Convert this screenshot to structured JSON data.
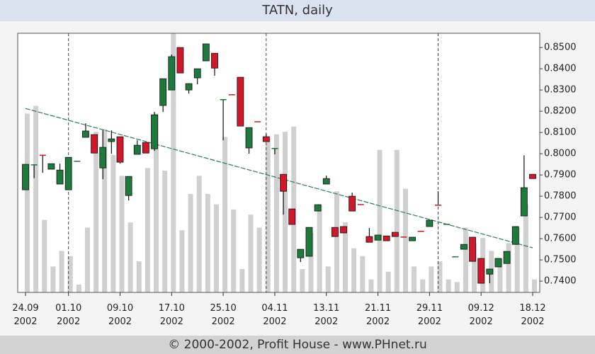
{
  "chart_data": {
    "type": "candlestick",
    "title": "TATN, daily",
    "footer": "© 2000-2002, Profit House - www.PHnet.ru",
    "categories": [
      "24.09\n2002",
      null,
      null,
      null,
      null,
      "01.10\n2002",
      null,
      null,
      null,
      null,
      null,
      "09.10\n2002",
      null,
      null,
      null,
      null,
      null,
      "17.10\n2002",
      null,
      null,
      null,
      null,
      null,
      "25.10\n2002",
      null,
      null,
      null,
      null,
      null,
      "04.11\n2002",
      null,
      null,
      null,
      null,
      null,
      "13.11\n2002",
      null,
      null,
      null,
      null,
      null,
      "21.11\n2002",
      null,
      null,
      null,
      null,
      null,
      "29.11\n2002",
      null,
      null,
      null,
      null,
      null,
      "09.12\n2002",
      null,
      null,
      null,
      null,
      null,
      "18.12\n2002"
    ],
    "open": [
      0.783,
      0.795,
      0.7995,
      0.7927,
      0.7857,
      0.783,
      0.7967,
      0.8077,
      0.809,
      0.7933,
      0.8057,
      0.808,
      0.7803,
      0.7997,
      0.8053,
      0.8023,
      0.8227,
      0.83,
      0.85,
      0.83,
      0.8357,
      0.8437,
      0.8473,
      0.8257,
      0.828,
      0.836,
      0.8027,
      0.8153,
      0.808,
      0.8027,
      0.7903,
      0.774,
      0.751,
      0.7517,
      0.773,
      0.7857,
      0.7653,
      0.7657,
      0.78,
      0.7763,
      0.761,
      0.7593,
      0.7613,
      0.763,
      0.761,
      0.759,
      0.7637,
      0.7657,
      0.776,
      0.767,
      0.7517,
      0.755,
      0.7607,
      0.7507,
      0.7433,
      0.7467,
      0.7483,
      0.7573,
      0.7707,
      0.7903
    ],
    "high": [
      0.795,
      0.795,
      0.7995,
      0.7953,
      0.7953,
      0.7983,
      0.7967,
      0.8143,
      0.809,
      0.811,
      0.811,
      0.808,
      0.7893,
      0.8063,
      0.8053,
      0.8197,
      0.8353,
      0.8467,
      0.85,
      0.833,
      0.84,
      0.8517,
      0.8473,
      0.8257,
      0.828,
      0.836,
      0.8123,
      0.8153,
      0.8093,
      0.8027,
      0.7903,
      0.774,
      0.755,
      0.7653,
      0.776,
      0.7897,
      0.7653,
      0.7657,
      0.7817,
      0.7763,
      0.765,
      0.7617,
      0.7613,
      0.763,
      0.761,
      0.7607,
      0.7637,
      0.7687,
      0.7823,
      0.767,
      0.7517,
      0.7573,
      0.7607,
      0.7507,
      0.7457,
      0.7507,
      0.754,
      0.7657,
      0.7993,
      0.7903
    ],
    "low": [
      0.783,
      0.7885,
      0.791,
      0.7927,
      0.7857,
      0.783,
      0.7967,
      0.8077,
      0.8003,
      0.788,
      0.8,
      0.7953,
      0.778,
      0.7997,
      0.8003,
      0.8013,
      0.8197,
      0.83,
      0.838,
      0.8283,
      0.8327,
      0.8437,
      0.8367,
      0.8063,
      0.828,
      0.813,
      0.8,
      0.8153,
      0.8057,
      0.7997,
      0.7713,
      0.7667,
      0.749,
      0.7517,
      0.773,
      0.7857,
      0.761,
      0.7627,
      0.773,
      0.7763,
      0.7583,
      0.7593,
      0.759,
      0.761,
      0.761,
      0.759,
      0.7637,
      0.7657,
      0.776,
      0.767,
      0.7517,
      0.755,
      0.7493,
      0.739,
      0.739,
      0.7467,
      0.7483,
      0.7573,
      0.7707,
      0.7883
    ],
    "close": [
      0.795,
      0.795,
      0.7995,
      0.7953,
      0.7923,
      0.7983,
      0.7967,
      0.8107,
      0.8003,
      0.803,
      0.807,
      0.796,
      0.7893,
      0.804,
      0.8003,
      0.8183,
      0.8353,
      0.8457,
      0.838,
      0.833,
      0.84,
      0.8517,
      0.8403,
      0.8257,
      0.828,
      0.813,
      0.8123,
      0.8153,
      0.8057,
      0.8027,
      0.7823,
      0.7667,
      0.755,
      0.7653,
      0.776,
      0.7883,
      0.761,
      0.7627,
      0.773,
      0.7763,
      0.7583,
      0.7617,
      0.759,
      0.761,
      0.761,
      0.7607,
      0.7637,
      0.7687,
      0.776,
      0.767,
      0.7517,
      0.7573,
      0.7493,
      0.739,
      0.7457,
      0.7507,
      0.754,
      0.7657,
      0.784,
      0.7883
    ],
    "doji_down": [
      2,
      24,
      27,
      39,
      44,
      46,
      48
    ],
    "volume": [
      69,
      72,
      28,
      10,
      16,
      14,
      3,
      25,
      62,
      63,
      53,
      45,
      27,
      12,
      48,
      69,
      47,
      100,
      24,
      38,
      45,
      38,
      34,
      60,
      32,
      9,
      30,
      25,
      60,
      61,
      62,
      64,
      9,
      23,
      34,
      10,
      39,
      27,
      17,
      14,
      5,
      55,
      8,
      55,
      40,
      10,
      5,
      10,
      12,
      5,
      4,
      25,
      19,
      21,
      16,
      13,
      19,
      25,
      34,
      5
    ],
    "vlim": [
      0,
      100
    ],
    "trend_line": {
      "x": [
        0,
        59
      ],
      "values": [
        0.8213,
        0.7557
      ]
    },
    "month_lines": [
      5,
      28,
      48
    ],
    "up_color": "#1d7a3c",
    "down_color": "#d0182a",
    "volume_color": "#d0d0d0",
    "trend_color": "#2e7d5b",
    "ylim": [
      0.7347,
      0.8567
    ],
    "yticks": [
      {
        "value": 0.74,
        "label": "0.7400"
      },
      {
        "value": 0.75,
        "label": "0.7500"
      },
      {
        "value": 0.76,
        "label": "0.7600"
      },
      {
        "value": 0.77,
        "label": "0.7700"
      },
      {
        "value": 0.78,
        "label": "0.7800"
      },
      {
        "value": 0.79,
        "label": "0.7900"
      },
      {
        "value": 0.8,
        "label": "0.8000"
      },
      {
        "value": 0.81,
        "label": "0.8100"
      },
      {
        "value": 0.82,
        "label": "0.8200"
      },
      {
        "value": 0.83,
        "label": "0.8300"
      },
      {
        "value": 0.84,
        "label": "0.8400"
      },
      {
        "value": 0.85,
        "label": "0.8500"
      }
    ]
  }
}
